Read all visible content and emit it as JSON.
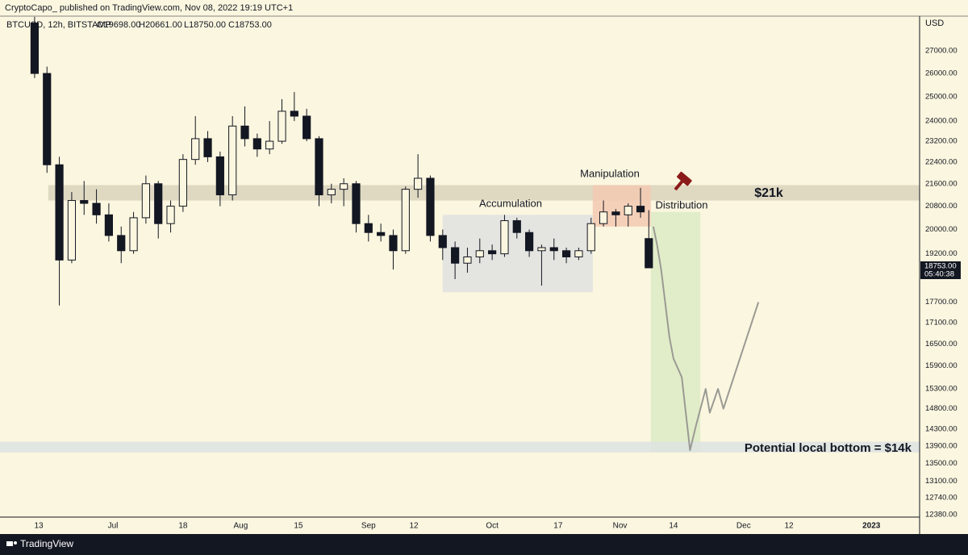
{
  "chart_data": {
    "type": "candlestick",
    "publisher_line": "CryptoCapo_  published on TradingView.com, Nov 08, 2022 19:19 UTC+1",
    "symbol": "BTCUSD, 12h, BITSTAMP",
    "ohlc_labels": [
      "O19698.00",
      "H20661.00",
      "L18750.00",
      "C18753.00"
    ],
    "currency": "USD",
    "last_price": {
      "value": 18753,
      "label": "18753.00"
    },
    "countdown": "05:40:38",
    "brand": "TradingView",
    "log_scale": true,
    "grid": false,
    "up_color": "#fbf6df",
    "down_color": "#131722",
    "x": [
      -1,
      2,
      5,
      8,
      11,
      14,
      17,
      20,
      23,
      26,
      29,
      32,
      35,
      38,
      41,
      44,
      47,
      50,
      53,
      56,
      59,
      62,
      65,
      68,
      71,
      74,
      77,
      80,
      83,
      86,
      89,
      92,
      95,
      98,
      101,
      104,
      107,
      110,
      113,
      116,
      119,
      122,
      125,
      128,
      131,
      134,
      137,
      140,
      143,
      146,
      148
    ],
    "open": [
      28300,
      26000,
      22300,
      19000,
      21000,
      20900,
      20500,
      19800,
      19300,
      20400,
      21600,
      20200,
      20800,
      22500,
      23300,
      22600,
      21200,
      23800,
      23300,
      22900,
      23200,
      24400,
      24200,
      23300,
      21200,
      21400,
      21600,
      20200,
      19900,
      19800,
      19300,
      21400,
      21800,
      19800,
      19400,
      18900,
      19100,
      19300,
      19200,
      20300,
      19900,
      19300,
      19400,
      19300,
      19100,
      19300,
      20200,
      20600,
      20500,
      20800,
      19698
    ],
    "high": [
      28600,
      26300,
      22600,
      21300,
      21700,
      21400,
      20900,
      20100,
      20600,
      21900,
      21700,
      21000,
      22700,
      24200,
      23600,
      22800,
      24200,
      24600,
      23500,
      24000,
      24900,
      25200,
      24500,
      23400,
      21600,
      21800,
      21700,
      20500,
      20200,
      20000,
      21500,
      22700,
      21900,
      20000,
      19600,
      19400,
      19700,
      19500,
      20500,
      20400,
      20000,
      19500,
      19700,
      19400,
      19400,
      20400,
      21000,
      20700,
      20900,
      21450,
      20661
    ],
    "low": [
      25800,
      22000,
      17600,
      18900,
      20500,
      20200,
      19600,
      18900,
      19200,
      20200,
      19700,
      19900,
      20600,
      22300,
      22400,
      20800,
      21000,
      23000,
      22600,
      22700,
      23100,
      24000,
      23200,
      20800,
      20900,
      20800,
      19900,
      19600,
      19600,
      18700,
      19200,
      21100,
      19600,
      19000,
      18400,
      18600,
      18900,
      19000,
      19100,
      19700,
      19100,
      18200,
      19000,
      18900,
      19000,
      19200,
      20100,
      20100,
      20100,
      20400,
      18750
    ],
    "close": [
      26000,
      22300,
      19000,
      21000,
      20900,
      20500,
      19800,
      19300,
      20400,
      21600,
      20200,
      20800,
      22500,
      23300,
      22600,
      21200,
      23800,
      23300,
      22900,
      23200,
      24400,
      24200,
      23300,
      21200,
      21400,
      21600,
      20200,
      19900,
      19800,
      19300,
      21400,
      21800,
      19800,
      19400,
      18900,
      19100,
      19300,
      19200,
      20300,
      19900,
      19300,
      19400,
      19300,
      19100,
      19300,
      20200,
      20600,
      20500,
      20800,
      20600,
      18753
    ],
    "projection": {
      "color": "#9a9a94",
      "x": [
        149.1,
        150,
        151,
        153,
        154,
        156,
        158,
        159.5,
        161.8,
        162.8,
        164.8,
        166.1,
        174.6
      ],
      "values": [
        20100,
        19500,
        18700,
        16700,
        16100,
        15600,
        13800,
        14400,
        15300,
        14700,
        15300,
        14800,
        17700
      ]
    },
    "zones": [
      {
        "label": "$21k",
        "color": "#d9d3bd",
        "x": [
          2.3,
          213.7
        ],
        "y": [
          21000,
          21550
        ]
      },
      {
        "label": "Accumulation",
        "color": "#dfe1e1",
        "x": [
          98,
          134.4
        ],
        "y": [
          18000,
          20500
        ]
      },
      {
        "label": "Manipulation",
        "color": "#f3c9b1",
        "x": [
          134.4,
          148.5
        ],
        "y": [
          20100,
          21550
        ]
      },
      {
        "label": "Distribution",
        "color": "#dcebc5",
        "x": [
          148.5,
          160.5
        ],
        "y": [
          13750,
          20600
        ]
      },
      {
        "label": "Potential local bottom = $14k",
        "color": "#dde3e3",
        "x": [
          -9.4,
          213.7
        ],
        "y": [
          13750,
          14000
        ]
      }
    ],
    "xlim": [
      -9.4,
      213.7
    ],
    "xticks": [
      {
        "value": 0,
        "label": "13"
      },
      {
        "value": 18,
        "label": "Jul"
      },
      {
        "value": 35,
        "label": "18"
      },
      {
        "value": 49,
        "label": "Aug"
      },
      {
        "value": 63,
        "label": "15"
      },
      {
        "value": 80,
        "label": "Sep"
      },
      {
        "value": 91,
        "label": "12"
      },
      {
        "value": 110,
        "label": "Oct"
      },
      {
        "value": 126,
        "label": "17"
      },
      {
        "value": 141,
        "label": "Nov"
      },
      {
        "value": 154,
        "label": "14"
      },
      {
        "value": 171,
        "label": "Dec"
      },
      {
        "value": 182,
        "label": "12"
      },
      {
        "value": 202,
        "label": "2023"
      }
    ],
    "ylim": [
      12350,
      28630
    ],
    "yticks": [
      {
        "value": 27000,
        "label": "27000.00"
      },
      {
        "value": 26000,
        "label": "26000.00"
      },
      {
        "value": 25000,
        "label": "25000.00"
      },
      {
        "value": 24000,
        "label": "24000.00"
      },
      {
        "value": 23200,
        "label": "23200.00"
      },
      {
        "value": 22400,
        "label": "22400.00"
      },
      {
        "value": 21600,
        "label": "21600.00"
      },
      {
        "value": 20800,
        "label": "20800.00"
      },
      {
        "value": 20000,
        "label": "20000.00"
      },
      {
        "value": 19200,
        "label": "19200.00"
      },
      {
        "value": 17700,
        "label": "17700.00"
      },
      {
        "value": 17100,
        "label": "17100.00"
      },
      {
        "value": 16500,
        "label": "16500.00"
      },
      {
        "value": 15900,
        "label": "15900.00"
      },
      {
        "value": 15300,
        "label": "15300.00"
      },
      {
        "value": 14800,
        "label": "14800.00"
      },
      {
        "value": 14300,
        "label": "14300.00"
      },
      {
        "value": 13900,
        "label": "13900.00"
      },
      {
        "value": 13500,
        "label": "13500.00"
      },
      {
        "value": 13100,
        "label": "13100.00"
      },
      {
        "value": 12740,
        "label": "12740.00"
      },
      {
        "value": 12380,
        "label": "12380.00"
      }
    ]
  }
}
